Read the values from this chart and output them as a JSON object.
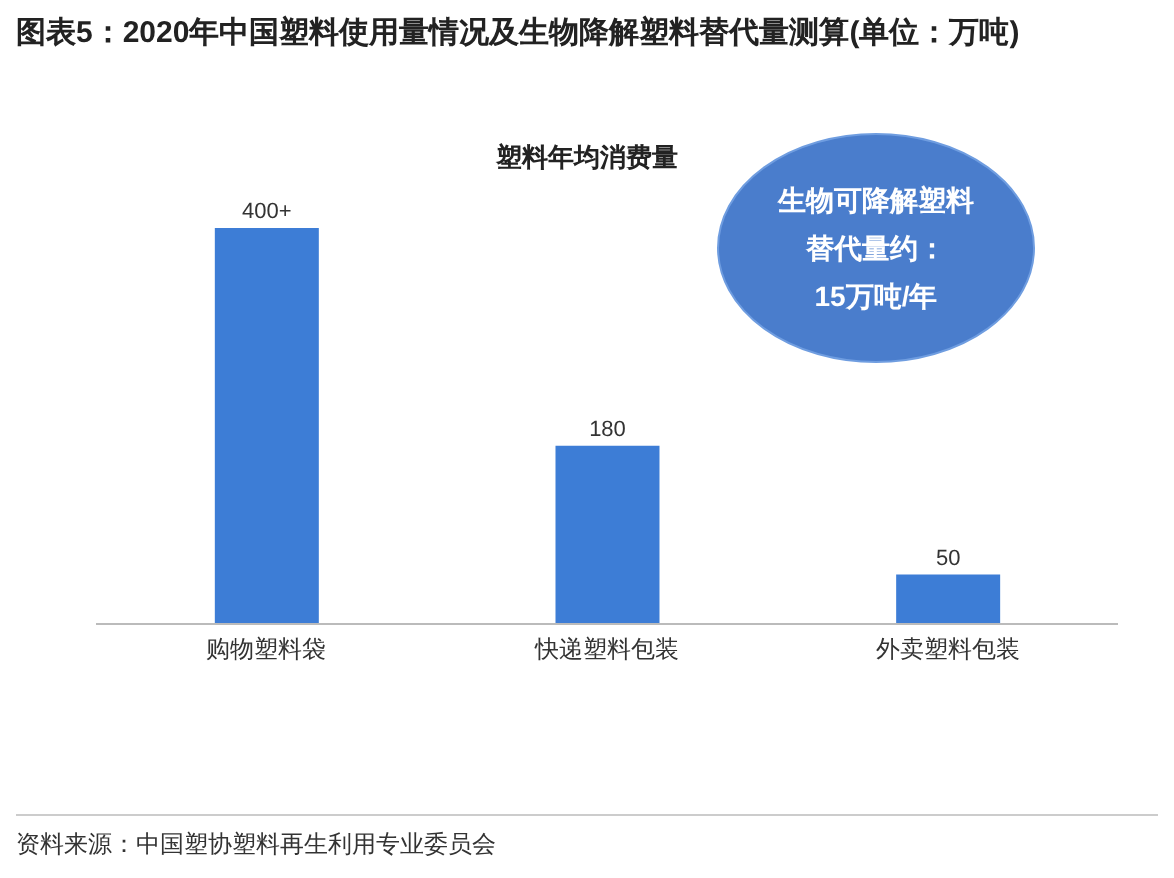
{
  "chart_data": {
    "type": "bar",
    "title": "图表5：2020年中国塑料使用量情况及生物降解塑料替代量测算(单位：万吨)",
    "subtitle": "塑料年均消费量",
    "categories": [
      "购物塑料袋",
      "快递塑料包装",
      "外卖塑料包装"
    ],
    "values": [
      400,
      180,
      50
    ],
    "value_labels": [
      "400+",
      "180",
      "50"
    ],
    "color": "#3d7dd6",
    "annotations": [
      "生物可降解塑料",
      "替代量约：",
      "15万吨/年",
      "资料来源：中国塑协塑料再生利用专业委员会"
    ]
  }
}
